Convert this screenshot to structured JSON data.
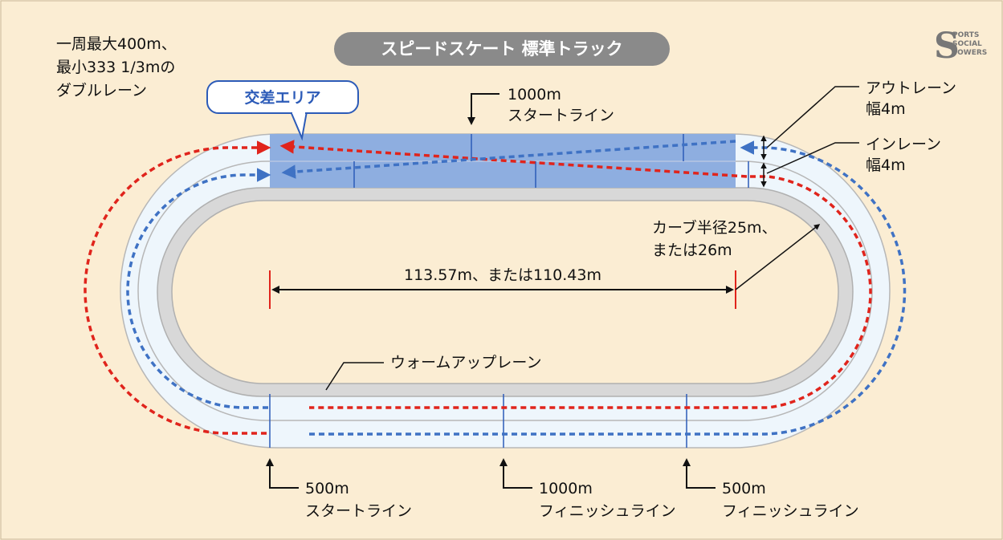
{
  "title": "スピードスケート 標準トラック",
  "lane_note": [
    "一周最大400m、",
    "最小333 1/3mの",
    "ダブルレーン"
  ],
  "crossing_area": "交差エリア",
  "start_1000": [
    "1000m",
    "スタートライン"
  ],
  "out_lane": [
    "アウトレーン",
    "幅4m"
  ],
  "in_lane": [
    "インレーン",
    "幅4m"
  ],
  "curve": [
    "カーブ半径25m、",
    "または26m"
  ],
  "straight": "113.57m、または110.43m",
  "warmup": "ウォームアップレーン",
  "start_500": [
    "500m",
    "スタートライン"
  ],
  "finish_1000": [
    "1000m",
    "フィニッシュライン"
  ],
  "finish_500": [
    "500m",
    "フィニッシュライン"
  ],
  "logo": {
    "letter": "S",
    "lines": [
      "PORTS",
      "SOCIAL",
      "TOWERS"
    ]
  },
  "colors": {
    "background": "#fbedd3",
    "track": "#eef6fc",
    "warmup": "#d8d8d8",
    "crossing": "#8eaee0",
    "red_path": "#e0241c",
    "blue_path": "#3f72c4",
    "title_box": "#8a8a8a",
    "marker": "#e0241c"
  }
}
